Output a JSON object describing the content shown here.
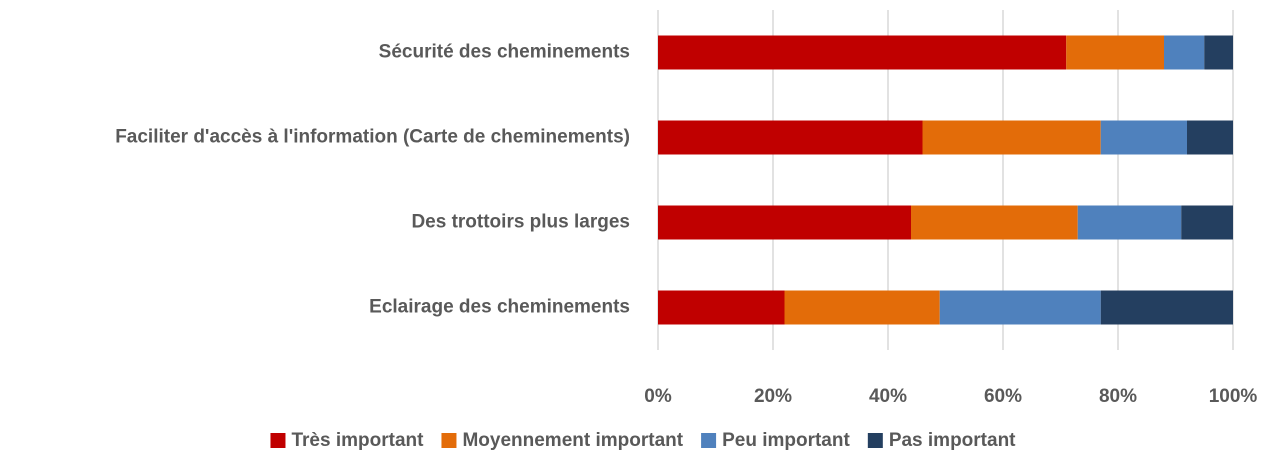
{
  "chart_data": {
    "type": "stacked_bar_horizontal",
    "categories": [
      "Sécurité des cheminements",
      "Faciliter d'accès à l'information (Carte de cheminements)",
      "Des trottoirs plus larges",
      "Eclairage des cheminements"
    ],
    "series": [
      {
        "name": "Très important",
        "color": "#c00000",
        "values": [
          71,
          46,
          44,
          22
        ]
      },
      {
        "name": "Moyennement important",
        "color": "#e36c09",
        "values": [
          17,
          31,
          29,
          27
        ]
      },
      {
        "name": "Peu important",
        "color": "#4f81bd",
        "values": [
          7,
          15,
          18,
          28
        ]
      },
      {
        "name": "Pas important",
        "color": "#243f60",
        "values": [
          5,
          8,
          9,
          23
        ]
      }
    ],
    "xlim": [
      0,
      100
    ],
    "xticks": [
      {
        "value": 0,
        "label": "0%"
      },
      {
        "value": 20,
        "label": "20%"
      },
      {
        "value": 40,
        "label": "40%"
      },
      {
        "value": 60,
        "label": "60%"
      },
      {
        "value": 80,
        "label": "80%"
      },
      {
        "value": 100,
        "label": "100%"
      }
    ],
    "grid": true,
    "legend": "bottom"
  }
}
